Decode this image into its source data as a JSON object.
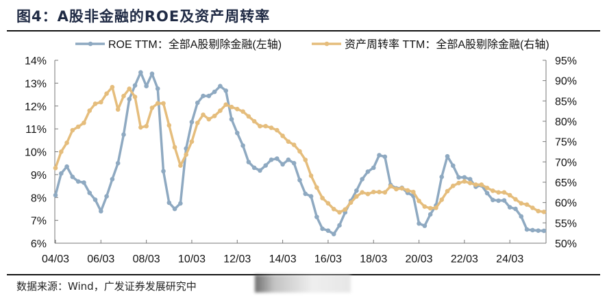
{
  "title": "图4：A股非金融的ROE及资产周转率",
  "source": "数据来源：Wind，广发证券发展研究中",
  "colors": {
    "roe": "#8EA9C1",
    "turnover": "#E5BD7C",
    "title": "#1f2a44"
  },
  "chart_data": {
    "type": "line",
    "title": "",
    "x_tick_labels": [
      "04/03",
      "06/03",
      "08/03",
      "10/03",
      "12/03",
      "14/03",
      "16/03",
      "18/03",
      "20/03",
      "22/03",
      "24/03"
    ],
    "x_start": "2004Q1",
    "x_frequency": "quarterly",
    "y_left": {
      "ticks": [
        "6%",
        "7%",
        "8%",
        "9%",
        "10%",
        "11%",
        "12%",
        "13%",
        "14%"
      ],
      "range": [
        6,
        14
      ]
    },
    "y_right": {
      "ticks": [
        "50%",
        "55%",
        "60%",
        "65%",
        "70%",
        "75%",
        "80%",
        "85%",
        "90%",
        "95%"
      ],
      "range": [
        50,
        95
      ]
    },
    "grid": false,
    "legend_position": "top",
    "series": [
      {
        "name": "ROE TTM：全部A股剔除金融(左轴)",
        "axis": "left",
        "values": [
          8.1,
          9.05,
          9.35,
          8.9,
          8.7,
          8.65,
          8.2,
          7.9,
          7.4,
          8.05,
          8.8,
          9.5,
          10.75,
          12.3,
          12.9,
          13.47,
          12.87,
          13.41,
          12.76,
          9.15,
          7.77,
          7.5,
          7.74,
          10.14,
          11.3,
          12.14,
          12.44,
          12.44,
          12.62,
          12.87,
          12.67,
          11.42,
          10.82,
          10.27,
          9.55,
          9.3,
          9.18,
          9.4,
          9.65,
          9.7,
          9.45,
          9.65,
          9.5,
          8.76,
          8.16,
          8.05,
          7.15,
          6.63,
          6.55,
          6.4,
          6.78,
          7.35,
          7.85,
          8.3,
          8.8,
          9.13,
          9.3,
          9.85,
          9.78,
          8.55,
          8.4,
          8.42,
          8.2,
          8.07,
          6.86,
          6.76,
          7.26,
          7.65,
          8.9,
          9.8,
          9.39,
          8.88,
          8.88,
          8.8,
          8.47,
          8.53,
          8.19,
          7.89,
          7.86,
          7.87,
          7.57,
          7.5,
          7.17,
          6.6,
          6.57,
          6.55,
          6.54
        ]
      },
      {
        "name": "资产周转率 TTM：全部A股剔除金融(右轴)",
        "axis": "right",
        "values": [
          68.5,
          72.5,
          74.7,
          77.8,
          78.65,
          79.6,
          82.6,
          84.3,
          84.7,
          86.8,
          88.4,
          82.9,
          86.2,
          88.0,
          86.0,
          78.5,
          78.8,
          83.3,
          84.4,
          84.4,
          79.0,
          73.6,
          69.1,
          71.8,
          75.0,
          79.6,
          81.6,
          80.5,
          81.3,
          82.6,
          84.1,
          83.5,
          83.0,
          82.4,
          81.2,
          80.0,
          78.8,
          78.8,
          78.4,
          77.8,
          76.4,
          75.0,
          74.2,
          72.6,
          70.5,
          66.6,
          63.7,
          61.1,
          59.8,
          58.4,
          57.6,
          58.3,
          60.0,
          61.5,
          62.5,
          62.1,
          62.6,
          62.6,
          62.5,
          64.0,
          63.3,
          63.5,
          63.0,
          62.6,
          60.4,
          59.0,
          58.6,
          58.7,
          60.7,
          62.8,
          64.1,
          64.8,
          65.2,
          64.8,
          64.4,
          64.4,
          63.6,
          62.9,
          62.5,
          62.5,
          61.8,
          60.8,
          59.8,
          59.5,
          58.7,
          57.9,
          57.7
        ]
      }
    ]
  }
}
